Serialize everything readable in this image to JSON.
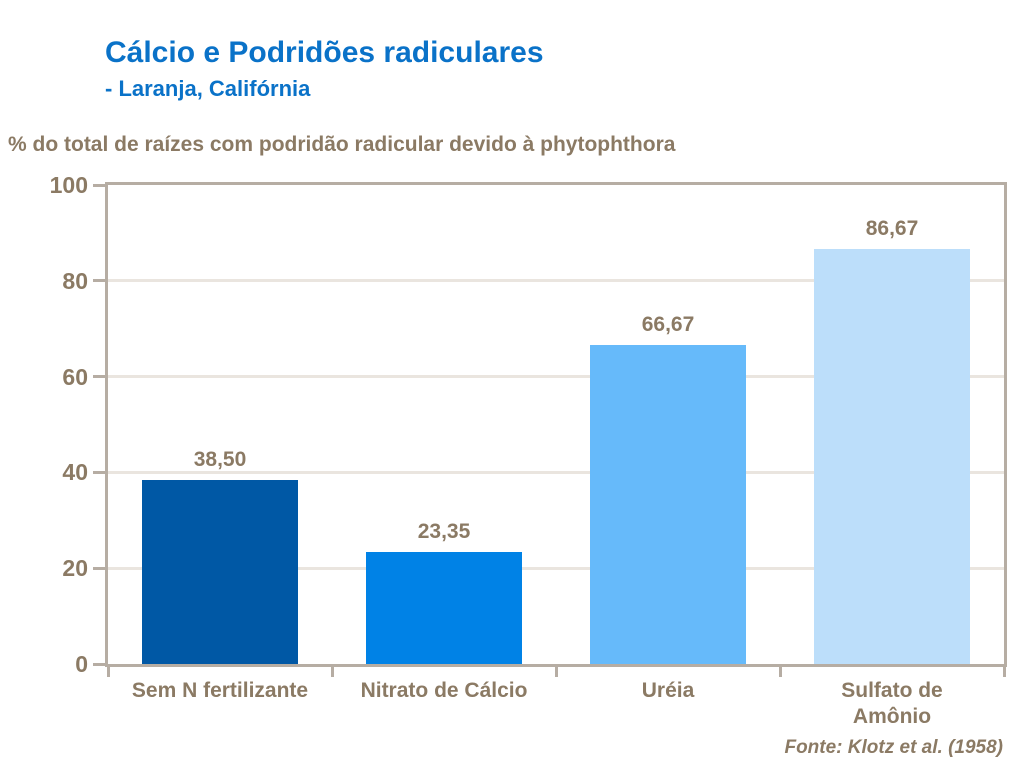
{
  "slide": {
    "title": "Cálcio e Podridões radiculares",
    "subtitle": "- Laranja, Califórnia",
    "source": "Fonte: Klotz et al. (1958)"
  },
  "chart_data": {
    "type": "bar",
    "title": "Cálcio e Podridões radiculares - Laranja, Califórnia",
    "ylabel": "% do total de raízes com podridão radicular devido à phytophthora",
    "categories": [
      "Sem N fertilizante",
      "Nitrato de Cálcio",
      "Uréia",
      "Sulfato de\nAmônio"
    ],
    "values": [
      38.5,
      23.35,
      66.67,
      86.67
    ],
    "value_labels": [
      "38,50",
      "23,35",
      "66,67",
      "86,67"
    ],
    "bar_colors": [
      "#0058A5",
      "#0082E6",
      "#66BAFA",
      "#BCDEFA"
    ],
    "xlabel": "",
    "ylim": [
      0,
      100
    ],
    "yticks": [
      0,
      20,
      40,
      60,
      80,
      100
    ],
    "grid": true,
    "legend": false,
    "source": "Fonte: Klotz et al. (1958)"
  },
  "colors": {
    "title_text": "#0A72C8",
    "body_text": "#8B7A64",
    "axis_border": "#B6ADA3",
    "gridline": "#EAE5DF"
  }
}
